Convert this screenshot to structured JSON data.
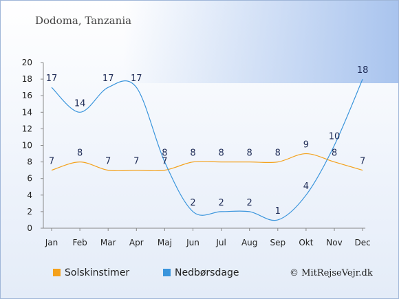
{
  "header": {
    "title": "Dodoma, Tanzania"
  },
  "credit": "© MitRejseVejr.dk",
  "colors": {
    "sun": "#f4a11b",
    "rain": "#3a95dc",
    "grid": "#888888"
  },
  "chart_data": {
    "type": "line",
    "title": "Dodoma, Tanzania",
    "categories": [
      "Jan",
      "Feb",
      "Mar",
      "Apr",
      "Maj",
      "Jun",
      "Jul",
      "Aug",
      "Sep",
      "Okt",
      "Nov",
      "Dec"
    ],
    "y_ticks": [
      "0",
      "2",
      "4",
      "6",
      "8",
      "10",
      "12",
      "14",
      "16",
      "18",
      "20"
    ],
    "ylim": [
      0,
      20
    ],
    "grid": false,
    "legend_position": "bottom-left",
    "series": [
      {
        "name": "Solskinstimer",
        "color": "#f4a11b",
        "values": [
          7,
          8,
          7,
          7,
          7,
          8,
          8,
          8,
          8,
          9,
          8,
          7
        ]
      },
      {
        "name": "Nedbørsdage",
        "color": "#3a95dc",
        "values": [
          17,
          14,
          17,
          17,
          8,
          2,
          2,
          2,
          1,
          4,
          10,
          18
        ]
      }
    ]
  }
}
